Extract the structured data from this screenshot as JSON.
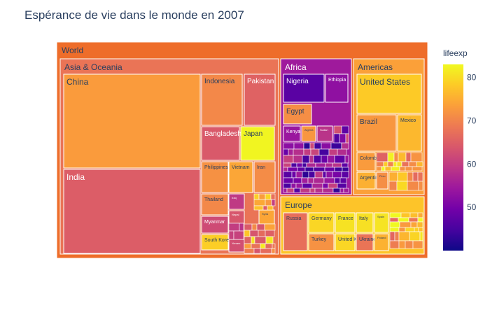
{
  "chart_data": {
    "type": "treemap",
    "title": "Espérance de vie dans le monde en 2007",
    "root_label": "World",
    "colorbar": {
      "title": "lifeexp",
      "ticks": [
        50,
        60,
        70,
        80
      ],
      "range": [
        40,
        83
      ]
    },
    "colors": [
      "#0d0887",
      "#46039f",
      "#7201a8",
      "#9c179e",
      "#bd3786",
      "#d8576b",
      "#ed7953",
      "#fb9f3a",
      "#fdca26",
      "#f0f921"
    ],
    "groups": [
      {
        "name": "Asia & Oceania",
        "lifeexp": 68,
        "items": [
          {
            "name": "China",
            "lifeexp": 73
          },
          {
            "name": "India",
            "lifeexp": 64.7
          },
          {
            "name": "Indonesia",
            "lifeexp": 70.6
          },
          {
            "name": "Pakistan",
            "lifeexp": 65.5
          },
          {
            "name": "Bangladesh",
            "lifeexp": 64.1
          },
          {
            "name": "Japan",
            "lifeexp": 82.6
          },
          {
            "name": "Philippines",
            "lifeexp": 71.7
          },
          {
            "name": "Vietnam",
            "lifeexp": 74.2
          },
          {
            "name": "Iran",
            "lifeexp": 71
          },
          {
            "name": "Thailand",
            "lifeexp": 70.6
          },
          {
            "name": "Iraq",
            "lifeexp": 59.5
          },
          {
            "name": "Myanmar",
            "lifeexp": 62.1
          },
          {
            "name": "South Korea",
            "lifeexp": 78.6
          },
          {
            "name": "Nepal",
            "lifeexp": 63.8
          },
          {
            "name": "Yemen",
            "lifeexp": 62.7
          },
          {
            "name": "Syria",
            "lifeexp": 74.1
          }
        ]
      },
      {
        "name": "Africa",
        "lifeexp": 54.8,
        "items": [
          {
            "name": "Nigeria",
            "lifeexp": 46.9
          },
          {
            "name": "Ethiopia",
            "lifeexp": 52.9
          },
          {
            "name": "Egypt",
            "lifeexp": 71.3
          },
          {
            "name": "Kenya",
            "lifeexp": 54.1
          },
          {
            "name": "Algeria",
            "lifeexp": 72.3
          },
          {
            "name": "Sudan",
            "lifeexp": 58.6
          }
        ]
      },
      {
        "name": "Americas",
        "lifeexp": 73.6,
        "items": [
          {
            "name": "United States",
            "lifeexp": 78.2
          },
          {
            "name": "Brazil",
            "lifeexp": 72.4
          },
          {
            "name": "Mexico",
            "lifeexp": 76.2
          },
          {
            "name": "Colombia",
            "lifeexp": 72.9
          },
          {
            "name": "Argentina",
            "lifeexp": 75.3
          },
          {
            "name": "Peru",
            "lifeexp": 71.4
          }
        ]
      },
      {
        "name": "Europe",
        "lifeexp": 77.6,
        "items": [
          {
            "name": "Russia",
            "lifeexp": 67.3
          },
          {
            "name": "Germany",
            "lifeexp": 79.4
          },
          {
            "name": "France",
            "lifeexp": 80.7
          },
          {
            "name": "Italy",
            "lifeexp": 80.5
          },
          {
            "name": "Spain",
            "lifeexp": 80.9
          },
          {
            "name": "Turkey",
            "lifeexp": 71.8
          },
          {
            "name": "United Kingdom",
            "lifeexp": 79.4
          },
          {
            "name": "Ukraine",
            "lifeexp": 68
          },
          {
            "name": "Poland",
            "lifeexp": 75.6
          }
        ]
      }
    ]
  }
}
